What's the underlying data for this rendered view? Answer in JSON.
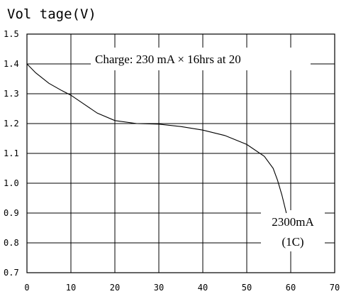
{
  "chart_data": {
    "type": "line",
    "ylabel": "Vol tage(V)",
    "xlim": [
      0,
      70
    ],
    "ylim": [
      0.7,
      1.5
    ],
    "grid": true,
    "x_ticks": [
      "0",
      "10",
      "20",
      "30",
      "40",
      "50",
      "60",
      "70"
    ],
    "y_ticks": [
      "0.7",
      "0.8",
      "0.9",
      "1.0",
      "1.1",
      "1.2",
      "1.3",
      "1.4",
      "1.5"
    ],
    "annotations": {
      "charge_condition": "Charge: 230 mA × 16hrs at 20",
      "discharge_rate": "2300mA",
      "c_rate": "(1C)"
    },
    "series": [
      {
        "x": [
          0,
          2,
          5,
          8,
          10,
          13,
          16,
          20,
          25,
          30,
          35,
          40,
          45,
          50,
          54,
          56,
          57,
          58,
          58.5,
          59
        ],
        "y": [
          1.4,
          1.37,
          1.335,
          1.31,
          1.295,
          1.265,
          1.235,
          1.21,
          1.2,
          1.198,
          1.19,
          1.178,
          1.16,
          1.13,
          1.09,
          1.05,
          1.01,
          0.96,
          0.93,
          0.9
        ]
      }
    ]
  }
}
